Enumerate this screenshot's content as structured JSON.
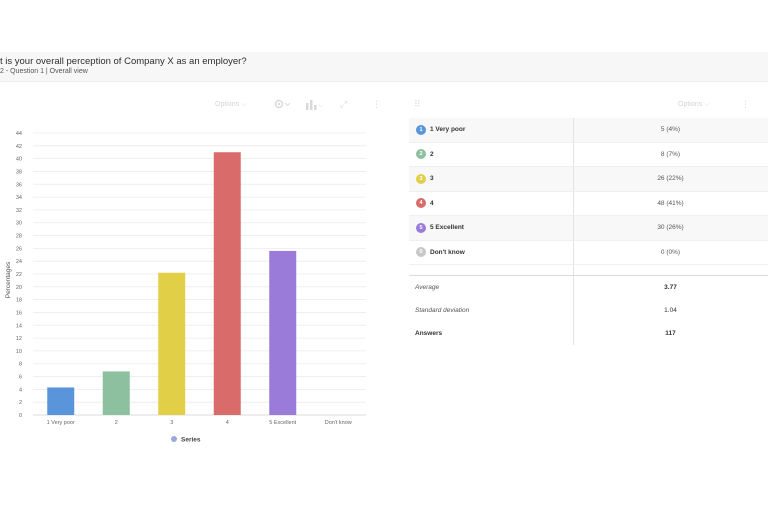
{
  "header": {
    "title": "t is your overall perception of Company X as an employer?",
    "subtitle": "2 - Question 1 | Overall view"
  },
  "toolbar_left": {
    "options_label": "Options",
    "options_chevron": "⌵",
    "chart_type_chevron": "⌵",
    "expand_icon": "⤢",
    "more_icon": "⋮"
  },
  "toolbar_right": {
    "drag_icon": "⠿",
    "options_label": "Options",
    "options_chevron": "⌵",
    "more_icon": "⋮"
  },
  "chart_data": {
    "type": "bar",
    "categories": [
      "1 Very poor",
      "2",
      "3",
      "4",
      "5 Excellent",
      "Don't know"
    ],
    "values": [
      4.3,
      6.8,
      22.2,
      41,
      25.6,
      0
    ],
    "colors": [
      "#5a95dc",
      "#8cc09e",
      "#e2cf48",
      "#d96b6b",
      "#9a7bd9",
      "#c8c8c8"
    ],
    "title": "",
    "xlabel": "",
    "ylabel": "Percentages",
    "ylim": [
      0,
      44
    ],
    "yticks": [
      0,
      2,
      4,
      6,
      8,
      10,
      12,
      14,
      16,
      18,
      20,
      22,
      24,
      26,
      28,
      30,
      32,
      34,
      36,
      38,
      40,
      42,
      44
    ],
    "grid": true,
    "legend": {
      "position": "bottom",
      "entries": [
        "Series"
      ],
      "color": "#9aa8e0"
    }
  },
  "table": {
    "rows": [
      {
        "badge": "1",
        "label": "1 Very poor",
        "value": "5 (4%)",
        "color": "#5a95dc"
      },
      {
        "badge": "2",
        "label": "2",
        "value": "8 (7%)",
        "color": "#8cc09e"
      },
      {
        "badge": "3",
        "label": "3",
        "value": "26 (22%)",
        "color": "#e2cf48"
      },
      {
        "badge": "4",
        "label": "4",
        "value": "48 (41%)",
        "color": "#d96b6b"
      },
      {
        "badge": "5",
        "label": "5 Excellent",
        "value": "30 (26%)",
        "color": "#9a7bd9"
      },
      {
        "badge": "0",
        "label": "Don't know",
        "value": "0 (0%)",
        "color": "#c8c8c8"
      }
    ],
    "stats": [
      {
        "label": "Average",
        "value": "3.77"
      },
      {
        "label": "Standard deviation",
        "value": "1.04"
      },
      {
        "label": "Answers",
        "value": "117"
      }
    ]
  }
}
